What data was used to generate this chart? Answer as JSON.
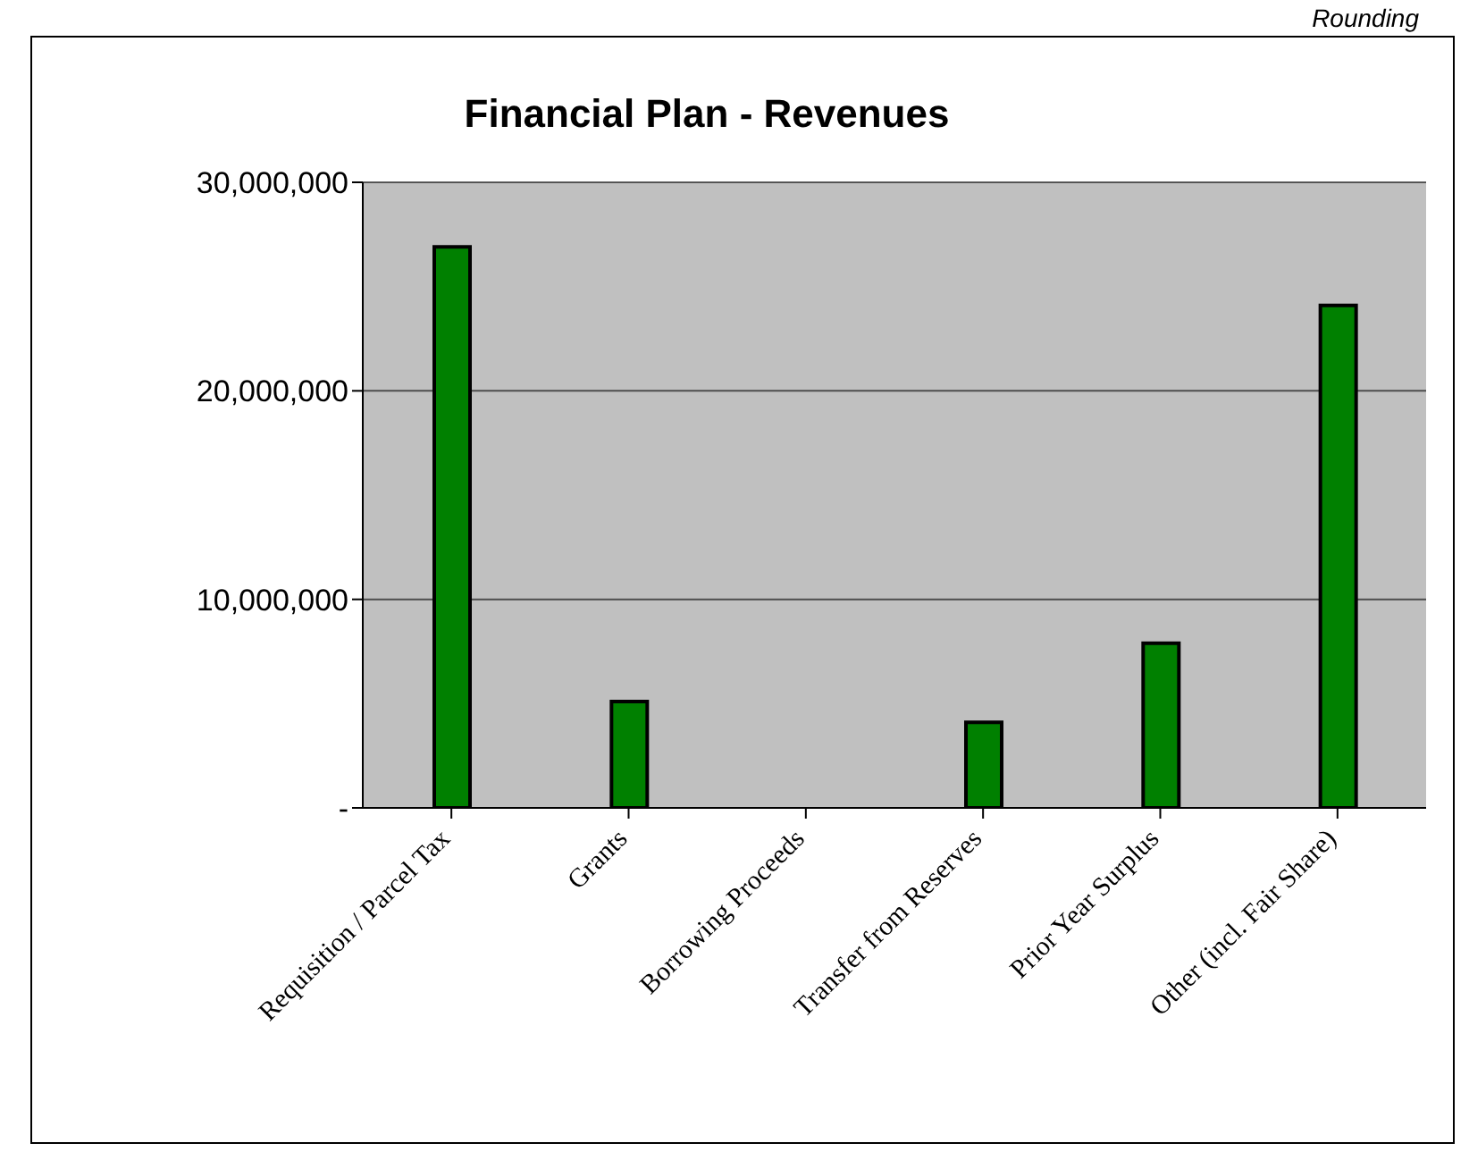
{
  "chart_data": {
    "type": "bar",
    "title": "Financial Plan - Revenues",
    "annotations": [
      "Rounding"
    ],
    "categories": [
      "Requisition / Parcel Tax",
      "Grants",
      "Borrowing Proceeds",
      "Transfer from Reserves",
      "Prior Year Surplus",
      "Other (incl. Fair Share)"
    ],
    "values": [
      26900000,
      5100000,
      0,
      4100000,
      7900000,
      24100000
    ],
    "color": "#008000",
    "ylim": [
      0,
      30000000
    ],
    "yticks": [
      {
        "value": 0,
        "label": "-"
      },
      {
        "value": 10000000,
        "label": "10,000,000"
      },
      {
        "value": 20000000,
        "label": "20,000,000"
      },
      {
        "value": 30000000,
        "label": "30,000,000"
      }
    ],
    "grid": "y",
    "legend": false
  }
}
